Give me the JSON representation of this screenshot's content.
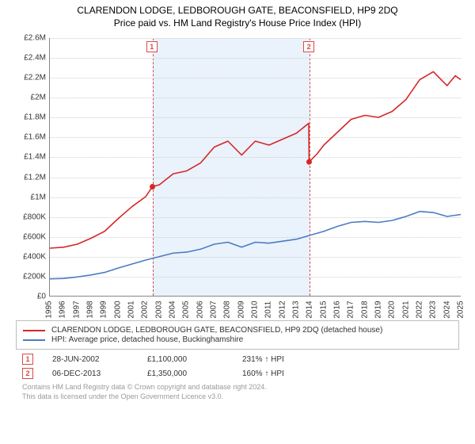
{
  "title": {
    "line1": "CLARENDON LODGE, LEDBOROUGH GATE, BEACONSFIELD, HP9 2DQ",
    "line2": "Price paid vs. HM Land Registry's House Price Index (HPI)",
    "fontsize": 12,
    "color": "#000000"
  },
  "chart": {
    "type": "line",
    "background_color": "#ffffff",
    "grid_color": "#cfcfcf",
    "axis_color": "#888888",
    "x": {
      "min": 1995,
      "max": 2025,
      "ticks": [
        1995,
        1996,
        1997,
        1998,
        1999,
        2000,
        2001,
        2002,
        2003,
        2004,
        2005,
        2006,
        2007,
        2008,
        2009,
        2010,
        2011,
        2012,
        2013,
        2014,
        2015,
        2016,
        2017,
        2018,
        2019,
        2020,
        2021,
        2022,
        2023,
        2024,
        2025
      ],
      "label_fontsize": 10,
      "rotate": -90
    },
    "y": {
      "min": 0,
      "max": 2600000,
      "tick_step": 200000,
      "ticks": [
        0,
        200000,
        400000,
        600000,
        800000,
        1000000,
        1200000,
        1400000,
        1600000,
        1800000,
        2000000,
        2200000,
        2400000,
        2600000
      ],
      "tick_labels": [
        "£0",
        "£200K",
        "£400K",
        "£600K",
        "£800K",
        "£1M",
        "£1.2M",
        "£1.4M",
        "£1.6M",
        "£1.8M",
        "£2M",
        "£2.2M",
        "£2.4M",
        "£2.6M"
      ],
      "label_fontsize": 10
    },
    "shaded_band": {
      "x_start": 2002.49,
      "x_end": 2013.93,
      "fill": "#eaf2fb",
      "edge_color": "#d94a4a",
      "edge_dash": true
    },
    "markers": [
      {
        "id": "1",
        "x": 2002.49,
        "box_color": "#d94a4a",
        "text_color": "#d94a4a"
      },
      {
        "id": "2",
        "x": 2013.93,
        "box_color": "#d94a4a",
        "text_color": "#d94a4a"
      }
    ],
    "series": [
      {
        "name": "price_paid",
        "label": "CLARENDON LODGE, LEDBOROUGH GATE, BEACONSFIELD, HP9 2DQ (detached house)",
        "color": "#d62728",
        "line_width": 1.6,
        "points": [
          [
            1995,
            480000
          ],
          [
            1996,
            490000
          ],
          [
            1997,
            520000
          ],
          [
            1998,
            580000
          ],
          [
            1999,
            650000
          ],
          [
            2000,
            780000
          ],
          [
            2001,
            900000
          ],
          [
            2002,
            1000000
          ],
          [
            2002.49,
            1100000
          ],
          [
            2003,
            1120000
          ],
          [
            2004,
            1230000
          ],
          [
            2005,
            1260000
          ],
          [
            2006,
            1340000
          ],
          [
            2007,
            1500000
          ],
          [
            2008,
            1560000
          ],
          [
            2009,
            1420000
          ],
          [
            2010,
            1560000
          ],
          [
            2011,
            1520000
          ],
          [
            2012,
            1580000
          ],
          [
            2013,
            1640000
          ],
          [
            2013.9,
            1740000
          ],
          [
            2013.93,
            1350000
          ],
          [
            2014.5,
            1430000
          ],
          [
            2015,
            1520000
          ],
          [
            2016,
            1650000
          ],
          [
            2017,
            1780000
          ],
          [
            2018,
            1820000
          ],
          [
            2019,
            1800000
          ],
          [
            2020,
            1860000
          ],
          [
            2021,
            1980000
          ],
          [
            2022,
            2180000
          ],
          [
            2023,
            2260000
          ],
          [
            2024,
            2120000
          ],
          [
            2024.6,
            2220000
          ],
          [
            2025,
            2180000
          ]
        ],
        "sale_dots": [
          [
            2002.49,
            1100000
          ],
          [
            2013.93,
            1350000
          ]
        ]
      },
      {
        "name": "hpi",
        "label": "HPI: Average price, detached house, Buckinghamshire",
        "color": "#4a7cc4",
        "line_width": 1.6,
        "points": [
          [
            1995,
            170000
          ],
          [
            1996,
            175000
          ],
          [
            1997,
            190000
          ],
          [
            1998,
            210000
          ],
          [
            1999,
            235000
          ],
          [
            2000,
            280000
          ],
          [
            2001,
            320000
          ],
          [
            2002,
            360000
          ],
          [
            2003,
            395000
          ],
          [
            2004,
            430000
          ],
          [
            2005,
            440000
          ],
          [
            2006,
            470000
          ],
          [
            2007,
            520000
          ],
          [
            2008,
            540000
          ],
          [
            2009,
            490000
          ],
          [
            2010,
            540000
          ],
          [
            2011,
            530000
          ],
          [
            2012,
            550000
          ],
          [
            2013,
            570000
          ],
          [
            2014,
            610000
          ],
          [
            2015,
            650000
          ],
          [
            2016,
            700000
          ],
          [
            2017,
            740000
          ],
          [
            2018,
            750000
          ],
          [
            2019,
            740000
          ],
          [
            2020,
            760000
          ],
          [
            2021,
            800000
          ],
          [
            2022,
            850000
          ],
          [
            2023,
            840000
          ],
          [
            2024,
            800000
          ],
          [
            2025,
            820000
          ]
        ]
      }
    ]
  },
  "legend": {
    "border_color": "#bdbdbd",
    "fontsize": 10,
    "items": [
      {
        "color": "#d62728",
        "label": "CLARENDON LODGE, LEDBOROUGH GATE, BEACONSFIELD, HP9 2DQ (detached house)"
      },
      {
        "color": "#4a7cc4",
        "label": "HPI: Average price, detached house, Buckinghamshire"
      }
    ]
  },
  "sales": [
    {
      "marker": "1",
      "date": "28-JUN-2002",
      "price": "£1,100,000",
      "delta": "231% ↑ HPI"
    },
    {
      "marker": "2",
      "date": "06-DEC-2013",
      "price": "£1,350,000",
      "delta": "160% ↑ HPI"
    }
  ],
  "footer": {
    "line1": "Contains HM Land Registry data © Crown copyright and database right 2024.",
    "line2": "This data is licensed under the Open Government Licence v3.0.",
    "color": "#9a9a9a",
    "fontsize": 9
  }
}
